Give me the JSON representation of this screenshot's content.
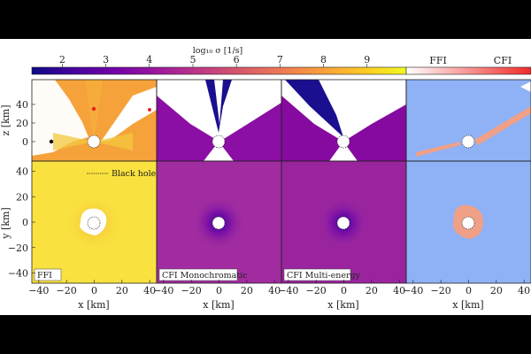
{
  "colorbar": {
    "label": "log₁₀ σ [1/s]",
    "ticks": [
      "2",
      "3",
      "4",
      "5",
      "6",
      "7",
      "8",
      "9"
    ],
    "tick_values": [
      2,
      3,
      4,
      5,
      6,
      7,
      8,
      9
    ],
    "range": [
      1.3,
      9.9
    ],
    "stops": [
      "#0d0887",
      "#46039f",
      "#7201a8",
      "#9c179e",
      "#bd3786",
      "#d8576b",
      "#ed7953",
      "#fb9f3a",
      "#fdca26",
      "#f0f921"
    ]
  },
  "classbar": {
    "labels": [
      "FFI",
      "CFI"
    ],
    "colors": [
      "#ffffff",
      "#ef2a28"
    ]
  },
  "panel_labels": [
    "FFI",
    "CFI Monochromatic",
    "CFI Multi-energy"
  ],
  "legend": {
    "black_hole": "Black hole"
  },
  "axes": {
    "xlabel": "x [km]",
    "ylabel_top": "z [km]",
    "ylabel_bottom": "y [km]",
    "xticks": [
      "−40",
      "−20",
      "0",
      "20",
      "40"
    ],
    "yticks": [
      "40",
      "20",
      "0",
      "−20",
      "−40"
    ]
  },
  "chart_data": {
    "type": "heatmap",
    "xlim": [
      -45,
      45
    ],
    "ylim": [
      -48,
      48
    ],
    "black_hole_radius_km": 5,
    "rows": [
      {
        "ylabel": "z [km]",
        "panels": [
          {
            "quantity": "log10 sigma (FFI)",
            "background_color": "#f6a23a",
            "excluded_color": "#ffffff"
          },
          {
            "quantity": "log10 sigma (CFI Monochromatic)",
            "background_color": "#8b0ea5",
            "excluded_color": "#ffffff"
          },
          {
            "quantity": "log10 sigma (CFI Multi-energy)",
            "background_color": "#860a9f",
            "excluded_color": "#ffffff"
          },
          {
            "quantity": "dominant instability",
            "background_color": "#8fb1f6",
            "cfi_color": "#f0a086",
            "excluded_color": "#ffffff"
          }
        ],
        "markers": [
          {
            "x_km": -36,
            "z_km": 0,
            "color": "#000000"
          },
          {
            "x_km": 0,
            "z_km": 23,
            "color": "#e8231f"
          },
          {
            "x_km": 40,
            "z_km": 23,
            "color": "#e8231f"
          }
        ]
      },
      {
        "ylabel": "y [km]",
        "panels": [
          {
            "quantity": "log10 sigma (FFI)",
            "background_color": "#f9e23f"
          },
          {
            "quantity": "log10 sigma (CFI Monochromatic)",
            "background_color": "#a12ca0"
          },
          {
            "quantity": "log10 sigma (CFI Multi-energy)",
            "background_color": "#9a249e"
          },
          {
            "quantity": "dominant instability",
            "background_color": "#8fb1f6",
            "cfi_color": "#f0a086"
          }
        ]
      }
    ]
  }
}
